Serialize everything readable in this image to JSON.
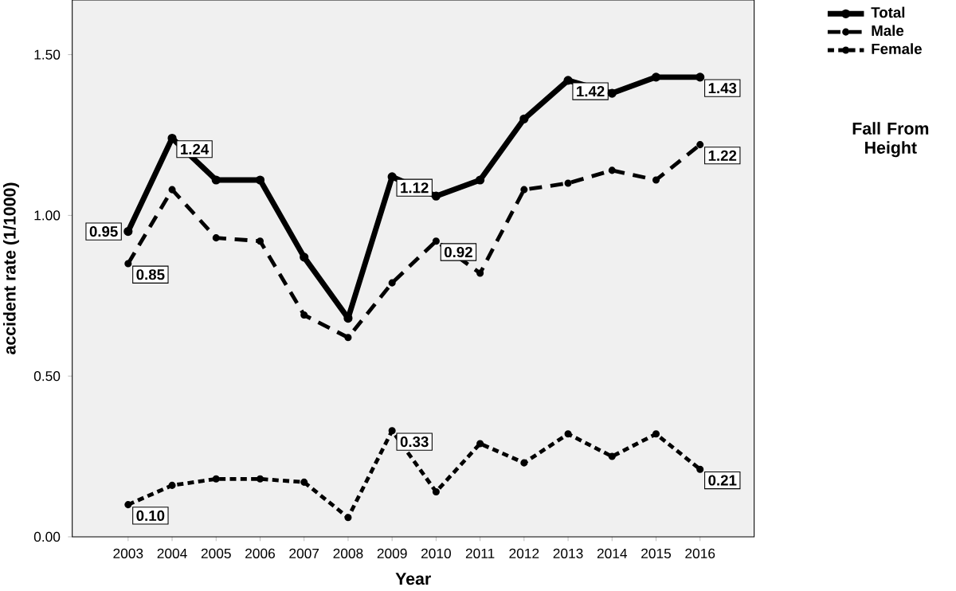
{
  "chart_data": {
    "type": "line",
    "xlabel": "Year",
    "ylabel": "accident rate (1/1000)",
    "categories": [
      "2003",
      "2004",
      "2005",
      "2006",
      "2007",
      "2008",
      "2009",
      "2010",
      "2011",
      "2012",
      "2013",
      "2014",
      "2015",
      "2016"
    ],
    "series": [
      {
        "name": "Total",
        "color": "#000000",
        "line_style": "solid",
        "values": [
          0.95,
          1.24,
          1.11,
          1.11,
          0.87,
          0.68,
          1.12,
          1.06,
          1.11,
          1.3,
          1.42,
          1.38,
          1.43,
          1.43
        ],
        "value_labels": [
          "0.95",
          "1.24",
          null,
          null,
          null,
          null,
          "1.12",
          null,
          null,
          null,
          "1.42",
          null,
          null,
          "1.43"
        ]
      },
      {
        "name": "Male",
        "color": "#000000",
        "line_style": "dashed",
        "values": [
          0.85,
          1.08,
          0.93,
          0.92,
          0.69,
          0.62,
          0.79,
          0.92,
          0.82,
          1.08,
          1.1,
          1.14,
          1.11,
          1.22
        ],
        "value_labels": [
          "0.85",
          null,
          null,
          null,
          null,
          null,
          null,
          "0.92",
          null,
          null,
          null,
          null,
          null,
          "1.22"
        ]
      },
      {
        "name": "Female",
        "color": "#000000",
        "line_style": "dashed",
        "values": [
          0.1,
          0.16,
          0.18,
          0.18,
          0.17,
          0.06,
          0.33,
          0.14,
          0.29,
          0.23,
          0.32,
          0.25,
          0.32,
          0.21
        ],
        "value_labels": [
          "0.10",
          null,
          null,
          null,
          null,
          null,
          "0.33",
          null,
          null,
          null,
          null,
          null,
          null,
          "0.21"
        ]
      }
    ],
    "ylim": [
      0,
      1.67
    ],
    "yticks": [
      {
        "value": 0,
        "label": "0.00"
      },
      {
        "value": 0.5,
        "label": "0.50"
      },
      {
        "value": 1.0,
        "label": "1.00"
      },
      {
        "value": 1.5,
        "label": "1.50"
      }
    ],
    "grid": false,
    "legend": "top right",
    "marker": "circle",
    "annotations": [
      "Fall From Height"
    ]
  }
}
